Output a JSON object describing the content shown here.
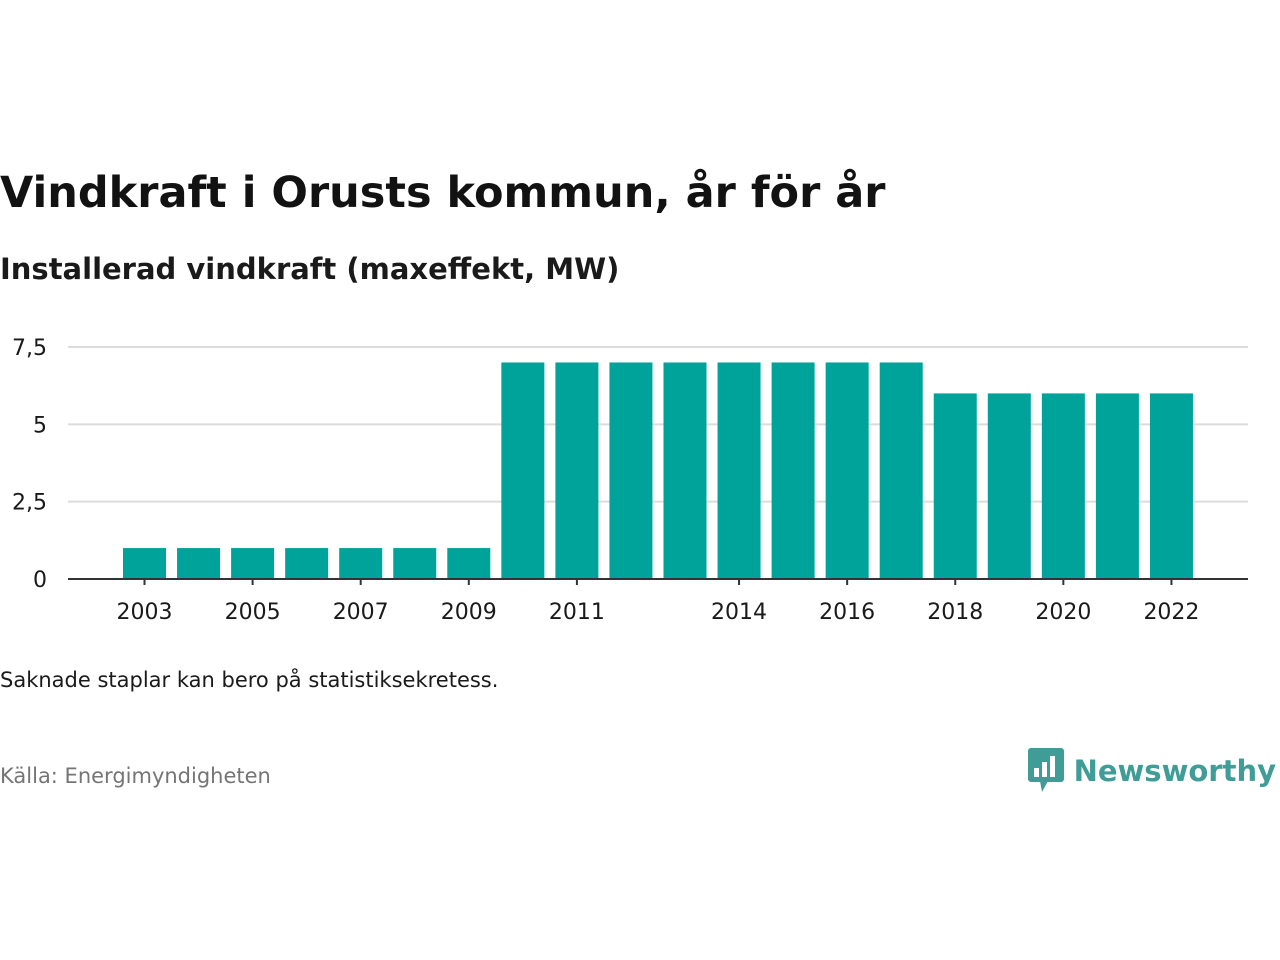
{
  "title": "Vindkraft i Orusts kommun, år för år",
  "subtitle": "Installerad vindkraft (maxeffekt, MW)",
  "note": "Saknade staplar kan bero på statistiksekretess.",
  "source": "Källa: Energimyndigheten",
  "brand": {
    "name": "Newsworthy",
    "icon": "newsworthy-logo-icon",
    "color": "#3f9c96"
  },
  "colors": {
    "bar": "#00a39a",
    "grid": "#dcdcdc",
    "axis": "#333333"
  },
  "chart_data": {
    "type": "bar",
    "categories": [
      "2003",
      "2004",
      "2005",
      "2006",
      "2007",
      "2008",
      "2009",
      "2010",
      "2011",
      "2012",
      "2013",
      "2014",
      "2015",
      "2016",
      "2017",
      "2018",
      "2019",
      "2020",
      "2021",
      "2022"
    ],
    "values": [
      1,
      1,
      1,
      1,
      1,
      1,
      1,
      7,
      7,
      7,
      7,
      7,
      7,
      7,
      7,
      6,
      6,
      6,
      6,
      6
    ],
    "x_tick_labels": [
      "2003",
      "2005",
      "2007",
      "2009",
      "2011",
      "2014",
      "2016",
      "2018",
      "2020",
      "2022"
    ],
    "y_ticks": [
      0,
      2.5,
      5,
      7.5
    ],
    "y_tick_labels": [
      "0",
      "2,5",
      "5",
      "7,5"
    ],
    "ylim": [
      0,
      7.5
    ],
    "grid": true,
    "xlabel": "",
    "ylabel": ""
  }
}
